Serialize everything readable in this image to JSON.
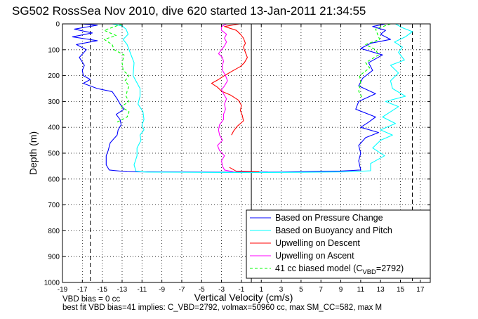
{
  "chart_data": {
    "type": "line",
    "title": "SG502 RossSea Nov 2010, dive 620 started 13-Jan-2011 21:34:55",
    "xlabel": "Vertical Velocity (cm/s)",
    "ylabel": "Depth (m)",
    "xlim": [
      -19,
      18
    ],
    "ylim": [
      1000,
      0
    ],
    "y_reversed": true,
    "grid": true,
    "xticks": [
      "-19",
      "-17",
      "-15",
      "-13",
      "-11",
      "-9",
      "-7",
      "-5",
      "-3",
      "-1",
      "1",
      "3",
      "5",
      "7",
      "9",
      "11",
      "13",
      "15",
      "17"
    ],
    "yticks": [
      "0",
      "100",
      "200",
      "300",
      "400",
      "500",
      "600",
      "700",
      "800",
      "900",
      "1000"
    ],
    "legend_position": "bottom-right",
    "legend": {
      "pressure": "Based on Pressure Change",
      "buoyancy": "Based on Buoyancy and Pitch",
      "descent": "Upwelling on Descent",
      "ascent": "Upwelling on Ascent",
      "model_main": "41 cc biased model (C",
      "model_sub": "VBD",
      "model_tail": "=2792)"
    },
    "reference_lines": {
      "dashed_x": [
        -16.2,
        16.2
      ],
      "solid_x": [
        0
      ]
    },
    "series": [
      {
        "name": "Based on Pressure Change",
        "color": "#0000ff",
        "segments": [
          [
            [
              -17.2,
              0
            ],
            [
              -15.5,
              5
            ],
            [
              -17.8,
              20
            ],
            [
              -16,
              35
            ],
            [
              -18,
              50
            ],
            [
              -15.5,
              65
            ],
            [
              -17.6,
              80
            ],
            [
              -16.6,
              100
            ],
            [
              -17.3,
              130
            ],
            [
              -16.8,
              160
            ],
            [
              -17,
              180
            ],
            [
              -16.9,
              200
            ],
            [
              -16.2,
              215
            ],
            [
              -16.9,
              230
            ],
            [
              -15.5,
              250
            ],
            [
              -14,
              262
            ],
            [
              -13.5,
              290
            ],
            [
              -13.2,
              310
            ],
            [
              -12.8,
              330
            ],
            [
              -13.6,
              350
            ],
            [
              -13.2,
              370
            ],
            [
              -13.1,
              390
            ],
            [
              -13.4,
              410
            ],
            [
              -13.5,
              430
            ],
            [
              -14.2,
              460
            ],
            [
              -14.4,
              490
            ],
            [
              -14.6,
              510
            ],
            [
              -14.6,
              545
            ],
            [
              -14.3,
              565
            ],
            [
              -12.5,
              572
            ],
            [
              -1.5,
              574
            ],
            [
              3,
              573
            ],
            [
              9,
              569
            ],
            [
              11,
              565
            ],
            [
              10.8,
              530
            ],
            [
              11,
              500
            ],
            [
              10.8,
              470
            ],
            [
              11.5,
              440
            ],
            [
              12.8,
              420
            ],
            [
              11,
              400
            ],
            [
              11.8,
              380
            ],
            [
              12.5,
              360
            ],
            [
              10.5,
              330
            ],
            [
              10.8,
              300
            ],
            [
              12.5,
              270
            ],
            [
              10.8,
              240
            ],
            [
              11.2,
              210
            ],
            [
              12.2,
              180
            ],
            [
              11.8,
              150
            ],
            [
              13.2,
              120
            ],
            [
              11,
              95
            ],
            [
              12,
              75
            ],
            [
              14,
              60
            ],
            [
              13,
              40
            ],
            [
              13.5,
              25
            ],
            [
              12.2,
              10
            ],
            [
              13.5,
              0
            ]
          ]
        ]
      },
      {
        "name": "Based on Buoyancy and Pitch",
        "color": "#00ffff",
        "segments": [
          [
            [
              -14,
              0
            ],
            [
              -13,
              8
            ],
            [
              -12.6,
              20
            ],
            [
              -12.4,
              40
            ],
            [
              -12.9,
              60
            ],
            [
              -12.5,
              80
            ],
            [
              -12.2,
              110
            ],
            [
              -11.8,
              150
            ],
            [
              -11.9,
              200
            ],
            [
              -11.2,
              250
            ],
            [
              -11.2,
              280
            ],
            [
              -11.4,
              310
            ],
            [
              -10.9,
              340
            ],
            [
              -10.8,
              370
            ],
            [
              -11,
              390
            ],
            [
              -10.8,
              410
            ],
            [
              -11.2,
              430
            ],
            [
              -11.1,
              450
            ],
            [
              -11.5,
              480
            ],
            [
              -11.5,
              510
            ],
            [
              -11.8,
              545
            ],
            [
              -11.6,
              570
            ],
            [
              -10.5,
              573
            ],
            [
              -1,
              575
            ],
            [
              5,
              574
            ],
            [
              10,
              572
            ],
            [
              12,
              568
            ],
            [
              12,
              540
            ],
            [
              13.4,
              510
            ],
            [
              12.2,
              480
            ],
            [
              13,
              450
            ],
            [
              14.2,
              430
            ],
            [
              13,
              410
            ],
            [
              14.5,
              385
            ],
            [
              13.2,
              360
            ],
            [
              14,
              340
            ],
            [
              14.8,
              320
            ],
            [
              13.5,
              300
            ],
            [
              15.5,
              280
            ],
            [
              14.2,
              250
            ],
            [
              14,
              220
            ],
            [
              14.8,
              190
            ],
            [
              14,
              160
            ],
            [
              15.4,
              140
            ],
            [
              14.8,
              110
            ],
            [
              15.2,
              90
            ],
            [
              14.4,
              70
            ],
            [
              15.5,
              50
            ],
            [
              16.2,
              30
            ],
            [
              15.2,
              15
            ],
            [
              14.5,
              0
            ]
          ]
        ]
      },
      {
        "name": "Upwelling on Descent",
        "color": "#ff0000",
        "segments": [
          [
            [
              -1.2,
              0
            ],
            [
              -2.7,
              10
            ],
            [
              -1.5,
              25
            ],
            [
              -1.1,
              40
            ],
            [
              -0.8,
              55
            ],
            [
              -0.6,
              75
            ],
            [
              -0.8,
              90
            ],
            [
              -0.6,
              110
            ],
            [
              -0.4,
              130
            ],
            [
              -0.7,
              150
            ],
            [
              -1.1,
              165
            ],
            [
              -1.8,
              180
            ],
            [
              -2.7,
              200
            ],
            [
              -3.3,
              215
            ],
            [
              -4,
              230
            ],
            [
              -3.4,
              245
            ],
            [
              -3,
              260
            ],
            [
              -2.1,
              275
            ],
            [
              -1.3,
              295
            ],
            [
              -1,
              315
            ],
            [
              -1.1,
              335
            ],
            [
              -0.9,
              355
            ],
            [
              -0.8,
              375
            ],
            [
              -1.4,
              395
            ],
            [
              -1.8,
              415
            ],
            [
              -2,
              430
            ]
          ],
          [
            [
              -2.2,
              555
            ],
            [
              -1.5,
              570
            ],
            [
              0.8,
              572
            ]
          ]
        ]
      },
      {
        "name": "Upwelling on Ascent",
        "color": "#ff00ff",
        "segments": [
          [
            [
              -2.5,
              0
            ],
            [
              -3,
              10
            ],
            [
              -3,
              25
            ],
            [
              -2.5,
              40
            ],
            [
              -2.7,
              55
            ],
            [
              -2.5,
              70
            ],
            [
              -2.7,
              85
            ],
            [
              -3,
              100
            ],
            [
              -3.3,
              115
            ],
            [
              -2.9,
              130
            ],
            [
              -2.8,
              145
            ],
            [
              -2.9,
              160
            ],
            [
              -2.9,
              180
            ],
            [
              -2.6,
              200
            ],
            [
              -2.4,
              220
            ],
            [
              -2.7,
              240
            ],
            [
              -3,
              255
            ],
            [
              -2.8,
              270
            ],
            [
              -2.5,
              290
            ],
            [
              -2.7,
              310
            ],
            [
              -2.6,
              330
            ],
            [
              -2.8,
              350
            ],
            [
              -2.8,
              370
            ],
            [
              -3.2,
              390
            ],
            [
              -3.3,
              410
            ],
            [
              -3.2,
              430
            ],
            [
              -2.9,
              450
            ],
            [
              -3.4,
              470
            ],
            [
              -3.2,
              490
            ],
            [
              -2.7,
              510
            ],
            [
              -3,
              530
            ],
            [
              -2.9,
              550
            ],
            [
              -2.7,
              565
            ],
            [
              -1.8,
              572
            ]
          ]
        ]
      },
      {
        "name": "41 cc biased model (CVBD=2792)",
        "color": "#00ff00",
        "segments": [
          [
            [
              -13,
              0
            ],
            [
              -14.8,
              25
            ],
            [
              -13.6,
              45
            ],
            [
              -14.8,
              60
            ],
            [
              -14,
              80
            ],
            [
              -13.8,
              100
            ],
            [
              -12.8,
              120
            ],
            [
              -13,
              150
            ],
            [
              -12.9,
              180
            ],
            [
              -12.3,
              200
            ],
            [
              -12.7,
              220
            ],
            [
              -12.3,
              240
            ],
            [
              -12.5,
              260
            ],
            [
              -12.6,
              280
            ],
            [
              -12.3,
              300
            ],
            [
              -13.1,
              320
            ],
            [
              -12.3,
              340
            ],
            [
              -12.5,
              360
            ],
            [
              -13.5,
              380
            ]
          ],
          [
            [
              14,
              0
            ],
            [
              12.5,
              20
            ],
            [
              12.7,
              40
            ],
            [
              12.9,
              60
            ],
            [
              11.5,
              80
            ],
            [
              12.5,
              100
            ],
            [
              12.8,
              120
            ],
            [
              11.5,
              150
            ],
            [
              11.9,
              170
            ],
            [
              10.9,
              200
            ],
            [
              11,
              230
            ],
            [
              10.8,
              260
            ],
            [
              11.2,
              290
            ]
          ]
        ]
      }
    ]
  },
  "footer": {
    "line1": "VBD bias = 0 cc",
    "line2": "best fit VBD bias=41 implies: C_VBD=2792, volmax=50960 cc, max SM_CC=582, max M"
  }
}
